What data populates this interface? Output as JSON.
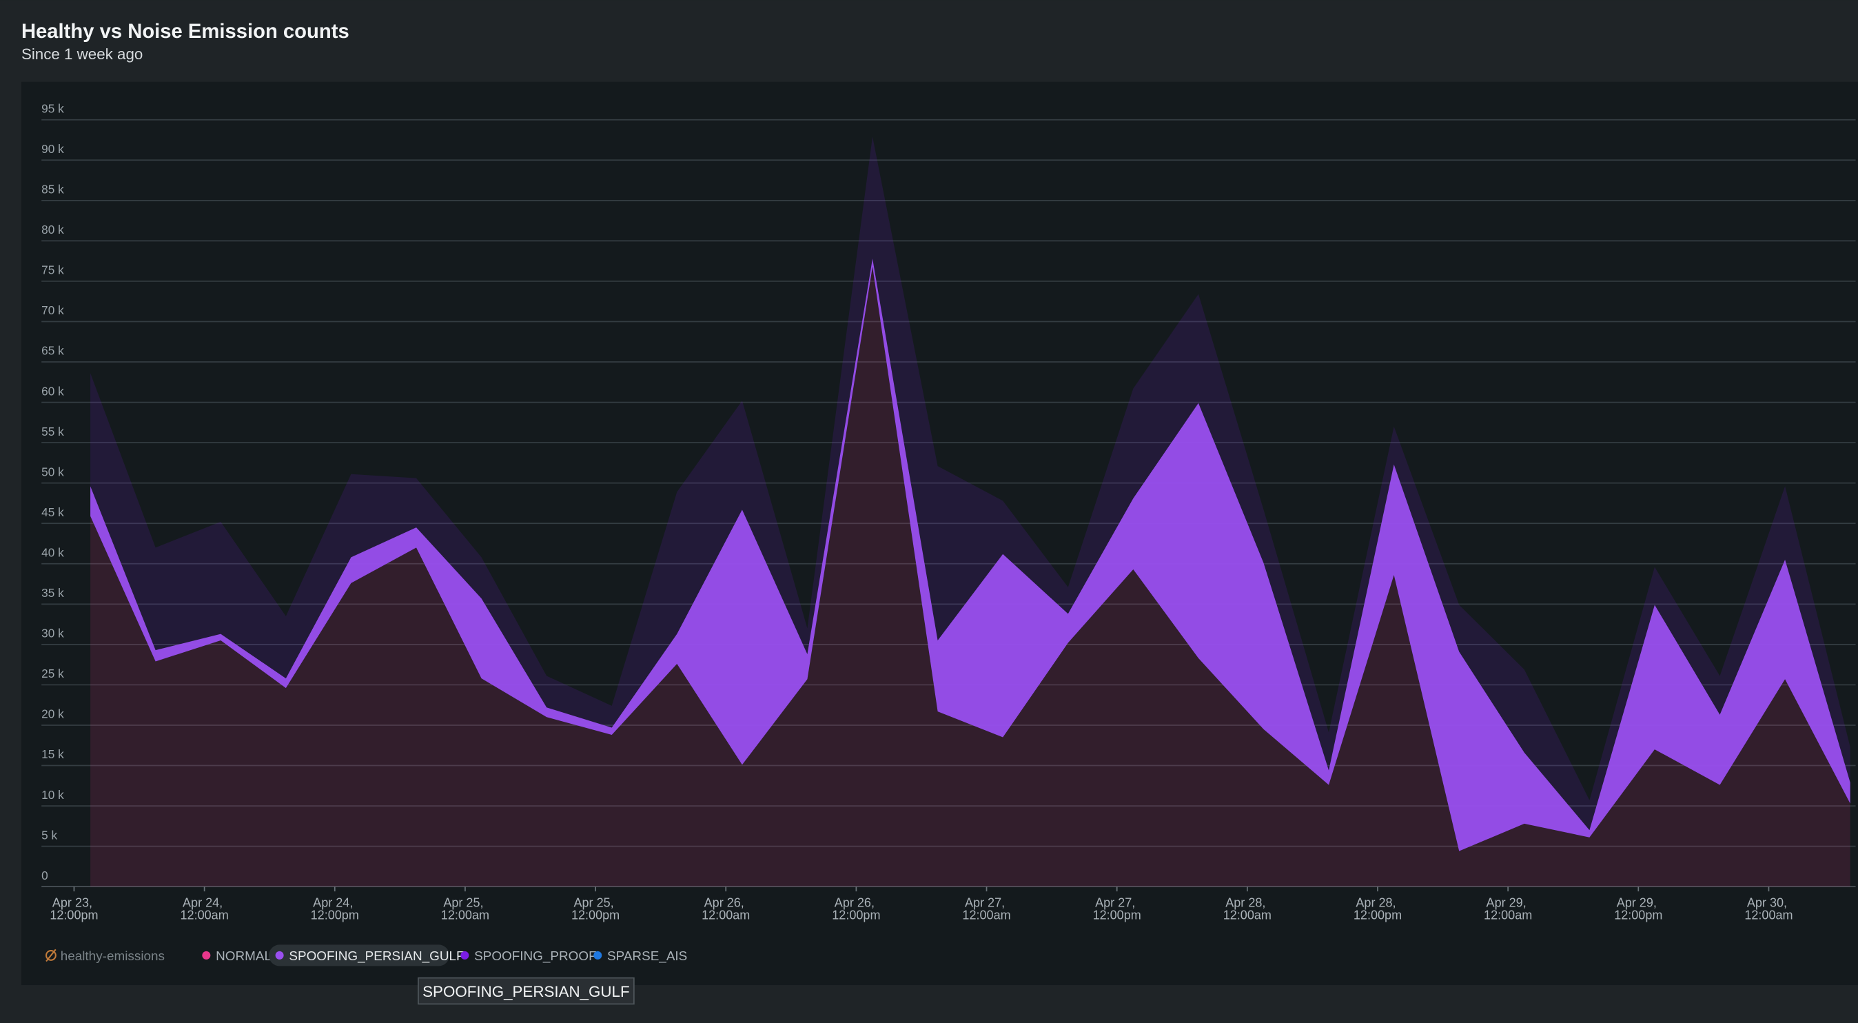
{
  "chart_data": {
    "type": "stacked_area",
    "title": "Healthy vs Noise Emission counts",
    "subtitle": "Since 1 week ago",
    "x": [
      13.5,
      19.5,
      25.5,
      31.5,
      37.5,
      43.5,
      49.5,
      55.5,
      61.5,
      67.5,
      73.5,
      79.5,
      85.5,
      91.5,
      97.5,
      103.5,
      109.5,
      115.5,
      121.5,
      127.5,
      133.5,
      139.5,
      145.5,
      151.5,
      157.5,
      163.5,
      169.5,
      175.5
    ],
    "xlim": [
      9,
      176
    ],
    "xticks": [
      {
        "value": 12,
        "label": "Apr 23, 12:00pm"
      },
      {
        "value": 24,
        "label": "Apr 24, 12:00am"
      },
      {
        "value": 36,
        "label": "Apr 24, 12:00pm"
      },
      {
        "value": 48,
        "label": "Apr 25, 12:00am"
      },
      {
        "value": 60,
        "label": "Apr 25, 12:00pm"
      },
      {
        "value": 72,
        "label": "Apr 26, 12:00am"
      },
      {
        "value": 84,
        "label": "Apr 26, 12:00pm"
      },
      {
        "value": 96,
        "label": "Apr 27, 12:00am"
      },
      {
        "value": 108,
        "label": "Apr 27, 12:00pm"
      },
      {
        "value": 120,
        "label": "Apr 28, 12:00am"
      },
      {
        "value": 132,
        "label": "Apr 28, 12:00pm"
      },
      {
        "value": 144,
        "label": "Apr 29, 12:00am"
      },
      {
        "value": 156,
        "label": "Apr 29, 12:00pm"
      },
      {
        "value": 168,
        "label": "Apr 30, 12:00am"
      }
    ],
    "ylim": [
      0,
      95000
    ],
    "yticks": [
      0,
      {
        "value": 5000,
        "label": "5 k"
      },
      {
        "value": 10000,
        "label": "10 k"
      },
      {
        "value": 15000,
        "label": "15 k"
      },
      {
        "value": 20000,
        "label": "20 k"
      },
      {
        "value": 25000,
        "label": "25 k"
      },
      {
        "value": 30000,
        "label": "30 k"
      },
      {
        "value": 35000,
        "label": "35 k"
      },
      {
        "value": 40000,
        "label": "40 k"
      },
      {
        "value": 45000,
        "label": "45 k"
      },
      {
        "value": 50000,
        "label": "50 k"
      },
      {
        "value": 55000,
        "label": "55 k"
      },
      {
        "value": 60000,
        "label": "60 k"
      },
      {
        "value": 65000,
        "label": "65 k"
      },
      {
        "value": 70000,
        "label": "70 k"
      },
      {
        "value": 75000,
        "label": "75 k"
      },
      {
        "value": 80000,
        "label": "80 k"
      },
      {
        "value": 85000,
        "label": "85 k"
      },
      {
        "value": 90000,
        "label": "90 k"
      },
      {
        "value": 95000,
        "label": "95 k"
      }
    ],
    "grid": true,
    "legend": "bottom-left",
    "series": [
      {
        "name": "healthy-emissions",
        "color": "#c07a3a",
        "disabled": true,
        "values": [
          null,
          null,
          null,
          null,
          null,
          null,
          null,
          null,
          null,
          null,
          null,
          null,
          null,
          null,
          null,
          null,
          null,
          null,
          null,
          null,
          null,
          null,
          null,
          null,
          null,
          null,
          null,
          null
        ]
      },
      {
        "name": "NORMAL",
        "color": "#e8378c",
        "values": [
          45900,
          27900,
          30500,
          24600,
          37600,
          42000,
          25800,
          21000,
          18800,
          27600,
          15100,
          25700,
          76800,
          21700,
          18500,
          30200,
          39300,
          28300,
          19500,
          12600,
          38600,
          4400,
          7800,
          6100,
          17000,
          12600,
          25700,
          10300
        ]
      },
      {
        "name": "SPOOFING_PERSIAN_GULF",
        "color": "#9a4ff0",
        "highlighted": true,
        "values": [
          3700,
          1400,
          800,
          1200,
          3200,
          2500,
          9900,
          1200,
          900,
          3700,
          31600,
          3100,
          1000,
          8800,
          22700,
          3600,
          8800,
          31600,
          20600,
          1800,
          13700,
          24700,
          8800,
          900,
          17900,
          8700,
          14800,
          2600
        ]
      },
      {
        "name": "SPOOFING_PROOF",
        "color": "#7b1de6",
        "values": [
          14000,
          12700,
          13900,
          7700,
          10300,
          6100,
          5100,
          3900,
          2700,
          17600,
          13500,
          3200,
          15100,
          21600,
          6600,
          3300,
          13600,
          13500,
          6600,
          4700,
          4700,
          5800,
          10300,
          3700,
          4700,
          4800,
          9100,
          4400
        ]
      },
      {
        "name": "SPARSE_AIS",
        "color": "#1f78e0",
        "values": [
          null,
          null,
          null,
          null,
          null,
          null,
          null,
          null,
          null,
          null,
          null,
          null,
          null,
          null,
          null,
          null,
          null,
          null,
          null,
          null,
          null,
          null,
          null,
          null,
          null,
          null,
          null,
          null
        ]
      }
    ]
  }
}
